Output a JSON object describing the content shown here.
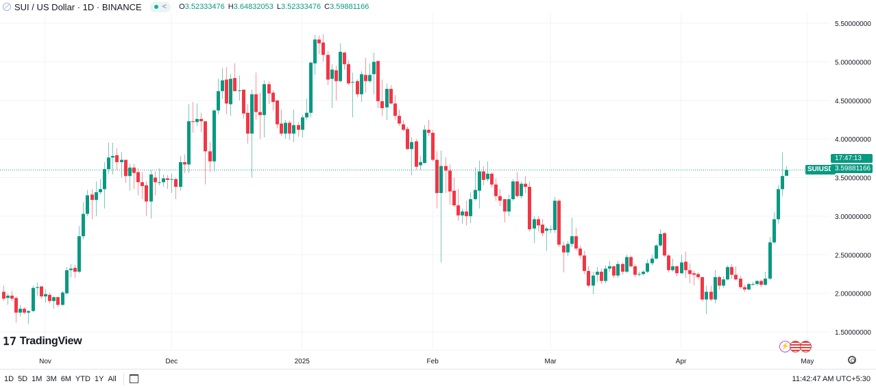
{
  "legend": {
    "title": "SUI / US Dollar · 1D · BINANCE",
    "open_label": "O",
    "open": "3.52333476",
    "high_label": "H",
    "high": "3.64832053",
    "low_label": "L",
    "low": "3.52333476",
    "close_label": "C",
    "close": "3.59881166",
    "icons": [
      "symbol-icon",
      "market-open-dot-icon",
      "share-icon"
    ]
  },
  "price_tag": {
    "symbol": "SUIUSD",
    "price": "3.59881166",
    "countdown": "17:47:13"
  },
  "logo": "TradingView",
  "bottom_bar": {
    "ranges": [
      "1D",
      "5D",
      "1M",
      "3M",
      "6M",
      "YTD",
      "1Y",
      "All"
    ],
    "clock": "11:42:47 AM UTC+5:30"
  },
  "colors": {
    "up": "#089981",
    "down": "#f23645",
    "grid": "#f0f3fa",
    "text": "#131722"
  },
  "chart_data": {
    "type": "candlestick",
    "title": "SUI / US Dollar · 1D · BINANCE",
    "ylim": [
      1.3,
      5.65
    ],
    "yticks": [
      "5.50000000",
      "5.00000000",
      "4.50000000",
      "4.00000000",
      "3.50000000",
      "3.00000000",
      "2.50000000",
      "2.00000000",
      "1.50000000"
    ],
    "ytick_values": [
      5.5,
      5.0,
      4.5,
      4.0,
      3.5,
      3.0,
      2.5,
      2.0,
      1.5
    ],
    "xticks": [
      {
        "label": "Nov",
        "date": "2024-11-01"
      },
      {
        "label": "Dec",
        "date": "2024-12-01"
      },
      {
        "label": "2025",
        "date": "2025-01-01"
      },
      {
        "label": "Feb",
        "date": "2025-02-01"
      },
      {
        "label": "Mar",
        "date": "2025-03-01"
      },
      {
        "label": "Apr",
        "date": "2025-04-01"
      },
      {
        "label": "May",
        "date": "2025-05-01"
      }
    ],
    "grid": true,
    "last_price_line": 3.59881166,
    "columns": [
      "date",
      "open",
      "high",
      "low",
      "close"
    ],
    "candles": [
      [
        "2024-10-22",
        2.02,
        2.1,
        1.9,
        1.93
      ],
      [
        "2024-10-23",
        1.94,
        2.0,
        1.85,
        1.97
      ],
      [
        "2024-10-24",
        1.97,
        2.03,
        1.9,
        1.93
      ],
      [
        "2024-10-25",
        1.94,
        1.96,
        1.62,
        1.75
      ],
      [
        "2024-10-26",
        1.75,
        1.85,
        1.7,
        1.8
      ],
      [
        "2024-10-27",
        1.8,
        1.82,
        1.73,
        1.75
      ],
      [
        "2024-10-28",
        1.75,
        1.78,
        1.6,
        1.77
      ],
      [
        "2024-10-29",
        1.77,
        2.1,
        1.76,
        2.07
      ],
      [
        "2024-10-30",
        2.07,
        2.14,
        1.97,
        2.08
      ],
      [
        "2024-10-31",
        2.09,
        2.09,
        1.93,
        1.96
      ],
      [
        "2024-11-01",
        1.96,
        2.05,
        1.88,
        1.99
      ],
      [
        "2024-11-02",
        1.98,
        2.01,
        1.87,
        1.9
      ],
      [
        "2024-11-03",
        1.9,
        1.96,
        1.8,
        1.95
      ],
      [
        "2024-11-04",
        1.95,
        1.96,
        1.82,
        1.85
      ],
      [
        "2024-11-05",
        1.85,
        2.03,
        1.84,
        2.01
      ],
      [
        "2024-11-06",
        2.0,
        2.34,
        1.98,
        2.3
      ],
      [
        "2024-11-07",
        2.3,
        2.38,
        2.21,
        2.32
      ],
      [
        "2024-11-08",
        2.33,
        2.37,
        2.2,
        2.28
      ],
      [
        "2024-11-09",
        2.28,
        2.87,
        2.26,
        2.74
      ],
      [
        "2024-11-10",
        2.74,
        3.18,
        2.7,
        3.03
      ],
      [
        "2024-11-11",
        3.03,
        3.34,
        3.0,
        3.27
      ],
      [
        "2024-11-12",
        3.28,
        3.35,
        2.96,
        3.21
      ],
      [
        "2024-11-13",
        3.21,
        3.45,
        3.0,
        3.31
      ],
      [
        "2024-11-14",
        3.31,
        3.48,
        3.28,
        3.35
      ],
      [
        "2024-11-15",
        3.35,
        3.7,
        3.1,
        3.61
      ],
      [
        "2024-11-16",
        3.61,
        3.95,
        3.55,
        3.76
      ],
      [
        "2024-11-17",
        3.76,
        3.95,
        3.54,
        3.78
      ],
      [
        "2024-11-18",
        3.79,
        3.88,
        3.6,
        3.7
      ],
      [
        "2024-11-19",
        3.7,
        3.83,
        3.5,
        3.73
      ],
      [
        "2024-11-20",
        3.73,
        3.73,
        3.43,
        3.52
      ],
      [
        "2024-11-21",
        3.52,
        3.68,
        3.33,
        3.63
      ],
      [
        "2024-11-22",
        3.63,
        3.68,
        3.35,
        3.56
      ],
      [
        "2024-11-23",
        3.57,
        3.62,
        3.27,
        3.44
      ],
      [
        "2024-11-24",
        3.44,
        3.57,
        3.22,
        3.39
      ],
      [
        "2024-11-25",
        3.4,
        3.45,
        3.0,
        3.19
      ],
      [
        "2024-11-26",
        3.19,
        3.6,
        2.97,
        3.54
      ],
      [
        "2024-11-27",
        3.5,
        3.58,
        3.27,
        3.44
      ],
      [
        "2024-11-28",
        3.44,
        3.62,
        3.4,
        3.44
      ],
      [
        "2024-11-29",
        3.44,
        3.54,
        3.38,
        3.49
      ],
      [
        "2024-11-30",
        3.49,
        3.53,
        3.35,
        3.47
      ],
      [
        "2024-12-01",
        3.48,
        3.55,
        3.3,
        3.48
      ],
      [
        "2024-12-02",
        3.48,
        3.5,
        3.22,
        3.38
      ],
      [
        "2024-12-03",
        3.38,
        3.78,
        3.33,
        3.7
      ],
      [
        "2024-12-04",
        3.7,
        3.8,
        3.56,
        3.67
      ],
      [
        "2024-12-05",
        3.67,
        4.45,
        3.56,
        4.23
      ],
      [
        "2024-12-06",
        4.23,
        4.48,
        4.08,
        4.22
      ],
      [
        "2024-12-07",
        4.22,
        4.46,
        4.17,
        4.26
      ],
      [
        "2024-12-08",
        4.26,
        4.34,
        4.09,
        4.23
      ],
      [
        "2024-12-09",
        4.23,
        4.23,
        3.41,
        3.84
      ],
      [
        "2024-12-10",
        3.84,
        3.96,
        3.57,
        3.71
      ],
      [
        "2024-12-11",
        3.71,
        4.38,
        3.58,
        4.37
      ],
      [
        "2024-12-12",
        4.37,
        4.78,
        4.32,
        4.62
      ],
      [
        "2024-12-13",
        4.62,
        4.92,
        4.52,
        4.76
      ],
      [
        "2024-12-14",
        4.77,
        4.93,
        4.32,
        4.46
      ],
      [
        "2024-12-15",
        4.45,
        4.84,
        4.3,
        4.78
      ],
      [
        "2024-12-16",
        4.79,
        4.98,
        4.62,
        4.62
      ],
      [
        "2024-12-17",
        4.63,
        4.82,
        4.5,
        4.63
      ],
      [
        "2024-12-18",
        4.64,
        4.64,
        4.27,
        4.33
      ],
      [
        "2024-12-19",
        4.34,
        4.45,
        3.94,
        4.07
      ],
      [
        "2024-12-20",
        4.07,
        4.64,
        3.5,
        4.58
      ],
      [
        "2024-12-21",
        4.58,
        4.86,
        4.25,
        4.35
      ],
      [
        "2024-12-22",
        4.35,
        4.6,
        4.0,
        4.31
      ],
      [
        "2024-12-23",
        4.31,
        4.76,
        4.02,
        4.71
      ],
      [
        "2024-12-24",
        4.71,
        4.75,
        4.45,
        4.59
      ],
      [
        "2024-12-25",
        4.6,
        4.63,
        4.37,
        4.48
      ],
      [
        "2024-12-26",
        4.5,
        4.5,
        4.14,
        4.19
      ],
      [
        "2024-12-27",
        4.2,
        4.38,
        4.04,
        4.07
      ],
      [
        "2024-12-28",
        4.07,
        4.25,
        4.0,
        4.21
      ],
      [
        "2024-12-29",
        4.21,
        4.24,
        3.99,
        4.07
      ],
      [
        "2024-12-30",
        4.07,
        4.38,
        3.96,
        4.18
      ],
      [
        "2024-12-31",
        4.18,
        4.22,
        4.03,
        4.12
      ],
      [
        "2025-01-01",
        4.12,
        4.31,
        4.02,
        4.28
      ],
      [
        "2025-01-02",
        4.28,
        4.52,
        4.25,
        4.34
      ],
      [
        "2025-01-03",
        4.34,
        5.0,
        4.28,
        4.99
      ],
      [
        "2025-01-04",
        4.98,
        5.35,
        4.83,
        5.29
      ],
      [
        "2025-01-05",
        5.29,
        5.34,
        5.1,
        5.24
      ],
      [
        "2025-01-06",
        5.25,
        5.36,
        5.0,
        5.09
      ],
      [
        "2025-01-07",
        5.09,
        5.14,
        4.7,
        4.77
      ],
      [
        "2025-01-08",
        4.78,
        4.97,
        4.4,
        4.9
      ],
      [
        "2025-01-09",
        4.89,
        4.95,
        4.5,
        4.75
      ],
      [
        "2025-01-10",
        4.75,
        5.24,
        4.74,
        5.13
      ],
      [
        "2025-01-11",
        5.12,
        5.13,
        4.9,
        4.97
      ],
      [
        "2025-01-12",
        4.97,
        5.02,
        4.7,
        4.72
      ],
      [
        "2025-01-13",
        4.74,
        4.86,
        4.28,
        4.74
      ],
      [
        "2025-01-14",
        4.75,
        4.77,
        4.54,
        4.58
      ],
      [
        "2025-01-15",
        4.58,
        4.88,
        4.48,
        4.84
      ],
      [
        "2025-01-16",
        4.83,
        5.05,
        4.6,
        4.75
      ],
      [
        "2025-01-17",
        4.75,
        4.98,
        4.73,
        4.83
      ],
      [
        "2025-01-18",
        4.84,
        5.12,
        4.58,
        5.0
      ],
      [
        "2025-01-19",
        5.01,
        5.02,
        4.4,
        4.49
      ],
      [
        "2025-01-20",
        4.49,
        4.77,
        4.3,
        4.4
      ],
      [
        "2025-01-21",
        4.41,
        4.72,
        4.25,
        4.65
      ],
      [
        "2025-01-22",
        4.65,
        4.7,
        4.45,
        4.46
      ],
      [
        "2025-01-23",
        4.46,
        4.57,
        4.25,
        4.3
      ],
      [
        "2025-01-24",
        4.3,
        4.38,
        4.17,
        4.2
      ],
      [
        "2025-01-25",
        4.19,
        4.24,
        4.1,
        4.12
      ],
      [
        "2025-01-26",
        4.13,
        4.16,
        3.86,
        3.87
      ],
      [
        "2025-01-27",
        3.87,
        4.02,
        3.53,
        3.96
      ],
      [
        "2025-01-28",
        3.97,
        4.0,
        3.6,
        3.64
      ],
      [
        "2025-01-29",
        3.66,
        3.78,
        3.6,
        3.7
      ],
      [
        "2025-01-30",
        3.69,
        4.18,
        3.68,
        4.12
      ],
      [
        "2025-01-31",
        4.12,
        4.25,
        4.04,
        4.08
      ],
      [
        "2025-02-01",
        4.08,
        4.12,
        3.71,
        3.73
      ],
      [
        "2025-02-02",
        3.73,
        3.84,
        3.1,
        3.3
      ],
      [
        "2025-02-03",
        3.3,
        3.85,
        2.4,
        3.65
      ],
      [
        "2025-02-04",
        3.65,
        3.76,
        3.3,
        3.59
      ],
      [
        "2025-02-05",
        3.59,
        3.67,
        3.15,
        3.32
      ],
      [
        "2025-02-06",
        3.33,
        3.5,
        3.12,
        3.14
      ],
      [
        "2025-02-07",
        3.14,
        3.35,
        2.94,
        3.01
      ],
      [
        "2025-02-08",
        3.01,
        3.1,
        2.9,
        3.06
      ],
      [
        "2025-02-09",
        3.06,
        3.2,
        2.88,
        3.0
      ],
      [
        "2025-02-10",
        3.0,
        3.31,
        2.91,
        3.22
      ],
      [
        "2025-02-11",
        3.22,
        3.63,
        3.2,
        3.34
      ],
      [
        "2025-02-12",
        3.33,
        3.72,
        3.1,
        3.58
      ],
      [
        "2025-02-13",
        3.58,
        3.65,
        3.4,
        3.47
      ],
      [
        "2025-02-14",
        3.48,
        3.71,
        3.45,
        3.55
      ],
      [
        "2025-02-15",
        3.55,
        3.57,
        3.37,
        3.41
      ],
      [
        "2025-02-16",
        3.41,
        3.49,
        3.2,
        3.26
      ],
      [
        "2025-02-17",
        3.26,
        3.35,
        3.13,
        3.2
      ],
      [
        "2025-02-18",
        3.22,
        3.22,
        2.92,
        3.06
      ],
      [
        "2025-02-19",
        3.06,
        3.28,
        3.0,
        3.22
      ],
      [
        "2025-02-20",
        3.22,
        3.48,
        3.2,
        3.45
      ],
      [
        "2025-02-21",
        3.45,
        3.57,
        3.24,
        3.26
      ],
      [
        "2025-02-22",
        3.26,
        3.45,
        3.23,
        3.42
      ],
      [
        "2025-02-23",
        3.42,
        3.52,
        3.3,
        3.38
      ],
      [
        "2025-02-24",
        3.38,
        3.45,
        2.8,
        2.83
      ],
      [
        "2025-02-25",
        2.84,
        3.0,
        2.65,
        2.96
      ],
      [
        "2025-02-26",
        2.96,
        3.0,
        2.8,
        2.88
      ],
      [
        "2025-02-27",
        2.89,
        2.96,
        2.74,
        2.78
      ],
      [
        "2025-02-28",
        2.81,
        2.86,
        2.55,
        2.84
      ],
      [
        "2025-03-01",
        2.83,
        2.88,
        2.78,
        2.83
      ],
      [
        "2025-03-02",
        2.82,
        3.25,
        2.78,
        3.2
      ],
      [
        "2025-03-03",
        3.2,
        3.22,
        2.6,
        2.63
      ],
      [
        "2025-03-04",
        2.62,
        2.67,
        2.27,
        2.53
      ],
      [
        "2025-03-05",
        2.53,
        2.68,
        2.48,
        2.64
      ],
      [
        "2025-03-06",
        2.64,
        2.98,
        2.6,
        2.74
      ],
      [
        "2025-03-07",
        2.74,
        2.85,
        2.55,
        2.58
      ],
      [
        "2025-03-08",
        2.58,
        2.62,
        2.45,
        2.49
      ],
      [
        "2025-03-09",
        2.49,
        2.55,
        2.25,
        2.29
      ],
      [
        "2025-03-10",
        2.29,
        2.35,
        2.08,
        2.1
      ],
      [
        "2025-03-11",
        2.1,
        2.28,
        1.99,
        2.23
      ],
      [
        "2025-03-12",
        2.24,
        2.34,
        2.15,
        2.28
      ],
      [
        "2025-03-13",
        2.28,
        2.32,
        2.12,
        2.16
      ],
      [
        "2025-03-14",
        2.16,
        2.36,
        2.13,
        2.32
      ],
      [
        "2025-03-15",
        2.32,
        2.42,
        2.28,
        2.35
      ],
      [
        "2025-03-16",
        2.35,
        2.36,
        2.2,
        2.23
      ],
      [
        "2025-03-17",
        2.23,
        2.42,
        2.2,
        2.38
      ],
      [
        "2025-03-18",
        2.38,
        2.4,
        2.24,
        2.28
      ],
      [
        "2025-03-19",
        2.28,
        2.5,
        2.26,
        2.47
      ],
      [
        "2025-03-20",
        2.47,
        2.49,
        2.33,
        2.35
      ],
      [
        "2025-03-21",
        2.35,
        2.38,
        2.21,
        2.24
      ],
      [
        "2025-03-22",
        2.25,
        2.28,
        2.22,
        2.25
      ],
      [
        "2025-03-23",
        2.25,
        2.3,
        2.23,
        2.28
      ],
      [
        "2025-03-24",
        2.28,
        2.44,
        2.26,
        2.39
      ],
      [
        "2025-03-25",
        2.39,
        2.5,
        2.36,
        2.45
      ],
      [
        "2025-03-26",
        2.45,
        2.64,
        2.44,
        2.62
      ],
      [
        "2025-03-27",
        2.62,
        2.83,
        2.6,
        2.77
      ],
      [
        "2025-03-28",
        2.78,
        2.79,
        2.47,
        2.49
      ],
      [
        "2025-03-29",
        2.49,
        2.51,
        2.27,
        2.3
      ],
      [
        "2025-03-30",
        2.3,
        2.45,
        2.28,
        2.35
      ],
      [
        "2025-03-31",
        2.35,
        2.36,
        2.22,
        2.26
      ],
      [
        "2025-04-01",
        2.26,
        2.5,
        2.25,
        2.4
      ],
      [
        "2025-04-02",
        2.41,
        2.54,
        2.2,
        2.3
      ],
      [
        "2025-04-03",
        2.3,
        2.39,
        2.13,
        2.25
      ],
      [
        "2025-04-04",
        2.26,
        2.29,
        2.1,
        2.24
      ],
      [
        "2025-04-05",
        2.25,
        2.27,
        2.18,
        2.21
      ],
      [
        "2025-04-06",
        2.21,
        2.21,
        1.9,
        1.92
      ],
      [
        "2025-04-07",
        1.92,
        2.1,
        1.73,
        2.02
      ],
      [
        "2025-04-08",
        2.02,
        2.1,
        1.9,
        1.92
      ],
      [
        "2025-04-09",
        1.92,
        2.3,
        1.87,
        2.21
      ],
      [
        "2025-04-10",
        2.21,
        2.23,
        2.05,
        2.1
      ],
      [
        "2025-04-11",
        2.1,
        2.22,
        2.07,
        2.18
      ],
      [
        "2025-04-12",
        2.18,
        2.36,
        2.17,
        2.34
      ],
      [
        "2025-04-13",
        2.34,
        2.38,
        2.19,
        2.24
      ],
      [
        "2025-04-14",
        2.24,
        2.35,
        2.17,
        2.18
      ],
      [
        "2025-04-15",
        2.19,
        2.23,
        2.06,
        2.08
      ],
      [
        "2025-04-16",
        2.08,
        2.11,
        2.02,
        2.05
      ],
      [
        "2025-04-17",
        2.05,
        2.14,
        2.04,
        2.12
      ],
      [
        "2025-04-18",
        2.12,
        2.15,
        2.1,
        2.12
      ],
      [
        "2025-04-19",
        2.12,
        2.17,
        2.1,
        2.16
      ],
      [
        "2025-04-20",
        2.16,
        2.18,
        2.08,
        2.11
      ],
      [
        "2025-04-21",
        2.11,
        2.28,
        2.1,
        2.19
      ],
      [
        "2025-04-22",
        2.19,
        2.73,
        2.17,
        2.66
      ],
      [
        "2025-04-23",
        2.66,
        3.05,
        2.64,
        2.96
      ],
      [
        "2025-04-24",
        2.96,
        3.4,
        2.9,
        3.35
      ],
      [
        "2025-04-25",
        3.35,
        3.83,
        3.26,
        3.52
      ],
      [
        "2025-04-26",
        3.52333476,
        3.64832053,
        3.52333476,
        3.59881166
      ]
    ]
  }
}
